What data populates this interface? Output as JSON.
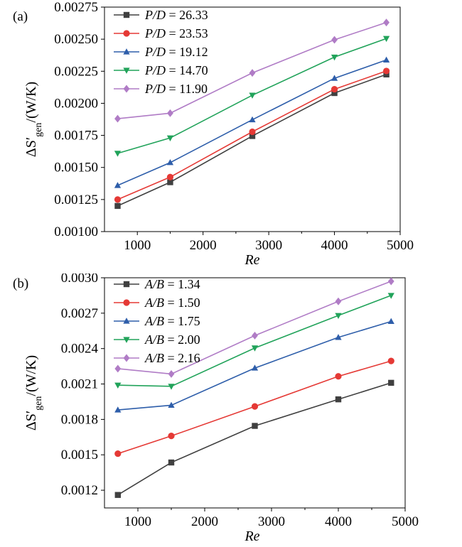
{
  "charts": [
    {
      "panel": "(a)",
      "type": "line",
      "xlabel": "Re",
      "ylabel_main": "ΔS′",
      "ylabel_sub": "gen",
      "ylabel_unit": "/(W/K)",
      "x": [
        700,
        1500,
        2750,
        4000,
        4790
      ],
      "xlim": [
        500,
        5000
      ],
      "xticks": [
        "1000",
        "2000",
        "3000",
        "4000",
        "5000"
      ],
      "ylim": [
        0.001,
        0.00275
      ],
      "yticks": [
        "0.00100",
        "0.00125",
        "0.00150",
        "0.00175",
        "0.00200",
        "0.00225",
        "0.00250",
        "0.00275"
      ],
      "legend_position": "top-left",
      "series": [
        {
          "name": "P/D = 26.33",
          "var": "P/D",
          "val": "= 26.33",
          "marker": "square",
          "color": "#404040",
          "values": [
            0.0012,
            0.001385,
            0.001745,
            0.00208,
            0.002225
          ]
        },
        {
          "name": "P/D = 23.53",
          "var": "P/D",
          "val": "= 23.53",
          "marker": "circle",
          "color": "#e53935",
          "values": [
            0.00125,
            0.001425,
            0.001778,
            0.00211,
            0.002252
          ]
        },
        {
          "name": "P/D = 19.12",
          "var": "P/D",
          "val": "= 19.12",
          "marker": "triangle-up",
          "color": "#2e5eaa",
          "values": [
            0.00136,
            0.001538,
            0.001872,
            0.002195,
            0.002338
          ]
        },
        {
          "name": "P/D = 14.70",
          "var": "P/D",
          "val": "= 14.70",
          "marker": "triangle-down",
          "color": "#21a35a",
          "values": [
            0.00161,
            0.00173,
            0.002063,
            0.00236,
            0.002505
          ]
        },
        {
          "name": "P/D = 11.90",
          "var": "P/D",
          "val": "= 11.90",
          "marker": "diamond",
          "color": "#b07cc6",
          "values": [
            0.00188,
            0.001923,
            0.002237,
            0.002495,
            0.00263
          ]
        }
      ]
    },
    {
      "panel": "(b)",
      "type": "line",
      "xlabel": "Re",
      "ylabel_main": "ΔS′",
      "ylabel_sub": "gen",
      "ylabel_unit": "/(W/K)",
      "x": [
        700,
        1500,
        2750,
        4000,
        4790
      ],
      "xlim": [
        500,
        5000
      ],
      "xticks": [
        "1000",
        "2000",
        "3000",
        "4000",
        "5000"
      ],
      "ylim": [
        0.00105,
        0.003
      ],
      "yticks": [
        "0.0012",
        "0.0015",
        "0.0018",
        "0.0021",
        "0.0024",
        "0.0027",
        "0.0030"
      ],
      "legend_position": "top-left",
      "series": [
        {
          "name": "A/B = 1.34",
          "var": "A/B",
          "val": "= 1.34",
          "marker": "square",
          "color": "#404040",
          "values": [
            0.00116,
            0.001435,
            0.001745,
            0.00197,
            0.00211
          ]
        },
        {
          "name": "A/B = 1.50",
          "var": "A/B",
          "val": "= 1.50",
          "marker": "circle",
          "color": "#e53935",
          "values": [
            0.00151,
            0.00166,
            0.00191,
            0.002165,
            0.002295
          ]
        },
        {
          "name": "A/B = 1.75",
          "var": "A/B",
          "val": "= 1.75",
          "marker": "triangle-up",
          "color": "#2e5eaa",
          "values": [
            0.00188,
            0.00192,
            0.002235,
            0.002495,
            0.00263
          ]
        },
        {
          "name": "A/B = 2.00",
          "var": "A/B",
          "val": "= 2.00",
          "marker": "triangle-down",
          "color": "#21a35a",
          "values": [
            0.00209,
            0.00208,
            0.002405,
            0.00268,
            0.00285
          ]
        },
        {
          "name": "A/B = 2.16",
          "var": "A/B",
          "val": "= 2.16",
          "marker": "diamond",
          "color": "#b07cc6",
          "values": [
            0.00223,
            0.002185,
            0.00251,
            0.0028,
            0.00297
          ]
        }
      ]
    }
  ]
}
